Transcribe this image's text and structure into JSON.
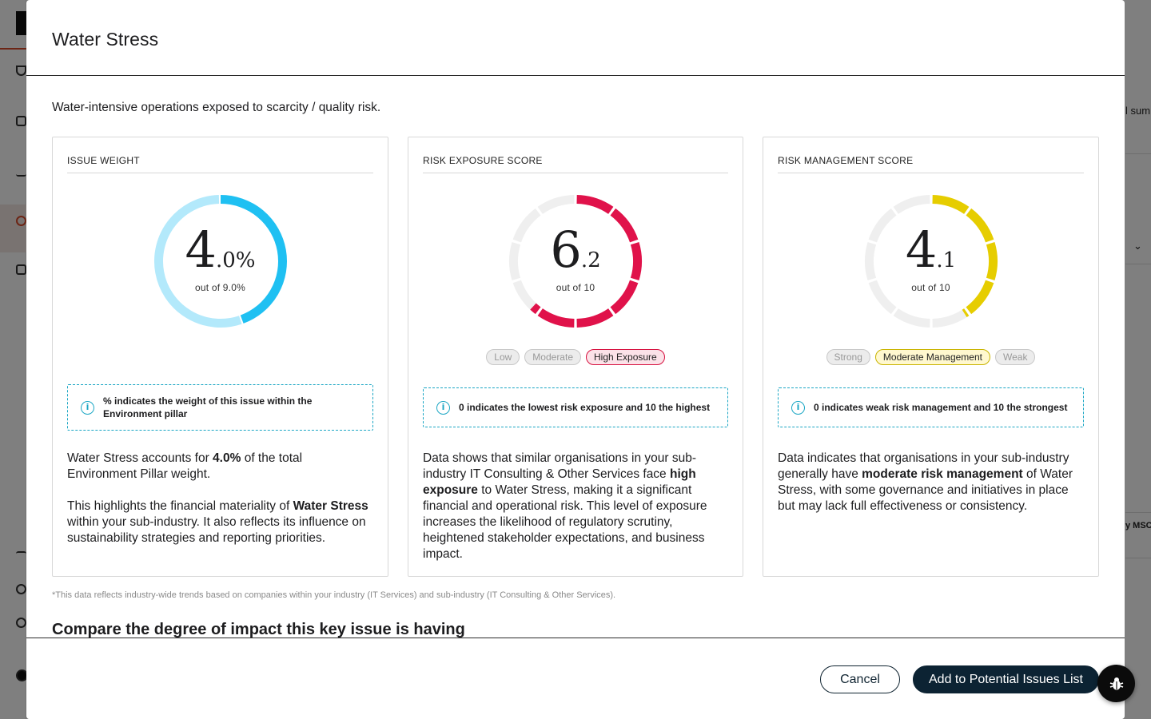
{
  "background": {
    "right_fragments": [
      "l sum",
      "y MSC"
    ]
  },
  "modal": {
    "title": "Water Stress",
    "subtitle": "Water-intensive operations exposed to scarcity / quality risk.",
    "cards": [
      {
        "label": "ISSUE WEIGHT",
        "gauge": {
          "big": "4",
          "small": ".0%",
          "sub": "out of 9.0%",
          "fraction": 0.444,
          "color": "#1fc0f2",
          "track": "#b3e9fb",
          "segmented": false
        },
        "info": "% indicates the weight of this issue within the Environment pillar",
        "description": [
          [
            "Water Stress accounts for ",
            "4.0%",
            " of the total Environment Pillar weight."
          ],
          [
            "This highlights the financial materiality of ",
            "Water Stress",
            " within your sub-industry. It also reflects its influence on sustainability strategies and reporting priorities."
          ]
        ]
      },
      {
        "label": "RISK EXPOSURE SCORE",
        "gauge": {
          "big": "6",
          "small": ".2",
          "sub": "out of 10",
          "fraction": 0.62,
          "color": "#e0124a",
          "track": "#efefef",
          "segmented": true
        },
        "pills": [
          "Low",
          "Moderate",
          "High Exposure"
        ],
        "active_pill": 2,
        "info": "0 indicates the lowest risk exposure and 10 the highest",
        "description": [
          [
            "Data shows that similar organisations in your sub-industry IT Consulting & Other Services face ",
            "high exposure",
            " to Water Stress, making it a significant financial and operational risk. This level of exposure increases the likelihood of regulatory scrutiny, heightened stakeholder expectations, and business impact."
          ]
        ]
      },
      {
        "label": "RISK MANAGEMENT SCORE",
        "gauge": {
          "big": "4",
          "small": ".1",
          "sub": "out of 10",
          "fraction": 0.41,
          "color": "#e6cd00",
          "track": "#efefef",
          "segmented": true
        },
        "pills": [
          "Strong",
          "Moderate Management",
          "Weak"
        ],
        "active_pill": 1,
        "info": "0 indicates weak risk management and 10 the strongest",
        "description": [
          [
            "Data indicates that organisations in your sub-industry generally have ",
            "moderate risk management",
            " of Water Stress, with some governance and initiatives in place but may lack full effectiveness or consistency."
          ]
        ]
      }
    ],
    "footnote": "*This data reflects industry-wide trends based on companies within your industry (IT Services) and sub-industry (IT Consulting & Other Services).",
    "compare_heading": "Compare the degree of impact this key issue is having",
    "footer": {
      "cancel_label": "Cancel",
      "add_label": "Add to Potential Issues List"
    }
  },
  "icons": {
    "info": "info-icon",
    "bug": "bug-icon"
  }
}
